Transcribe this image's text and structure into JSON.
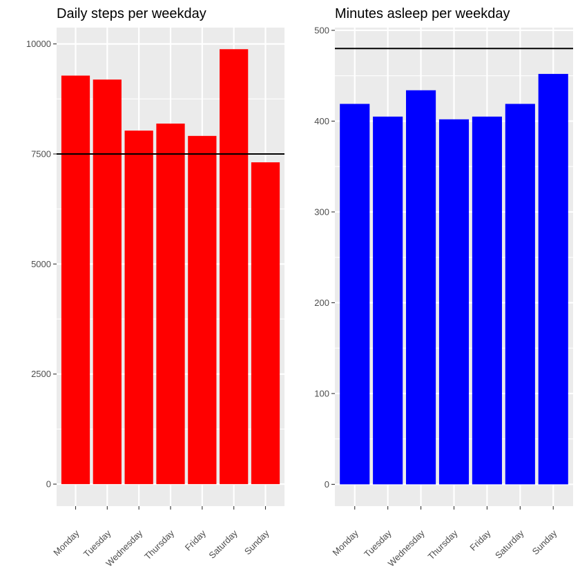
{
  "chart_data": [
    {
      "type": "bar",
      "title": "Daily steps per weekday",
      "xlabel": "",
      "ylabel": "",
      "categories": [
        "Monday",
        "Tuesday",
        "Wednesday",
        "Thursday",
        "Friday",
        "Saturday",
        "Sunday"
      ],
      "values": [
        9280,
        9190,
        8030,
        8190,
        7910,
        9880,
        7310
      ],
      "ylim": [
        -500,
        10370
      ],
      "yticks": [
        0,
        2500,
        5000,
        7500,
        10000
      ],
      "ytick_labels": [
        "0",
        "2500",
        "5000",
        "7500",
        "10000"
      ],
      "reference_line": 7500,
      "bar_color": "#ff0000",
      "panel_background": "#ebebeb",
      "grid": true
    },
    {
      "type": "bar",
      "title": "Minutes asleep per weekday",
      "xlabel": "",
      "ylabel": "",
      "categories": [
        "Monday",
        "Tuesday",
        "Wednesday",
        "Thursday",
        "Friday",
        "Saturday",
        "Sunday"
      ],
      "values": [
        419,
        405,
        434,
        402,
        405,
        419,
        452
      ],
      "ylim": [
        -24,
        503
      ],
      "yticks": [
        0,
        100,
        200,
        300,
        400,
        500
      ],
      "ytick_labels": [
        "0",
        "100",
        "200",
        "300",
        "400",
        "500"
      ],
      "reference_line": 480,
      "bar_color": "#0000ff",
      "panel_background": "#ebebeb",
      "grid": true
    }
  ]
}
